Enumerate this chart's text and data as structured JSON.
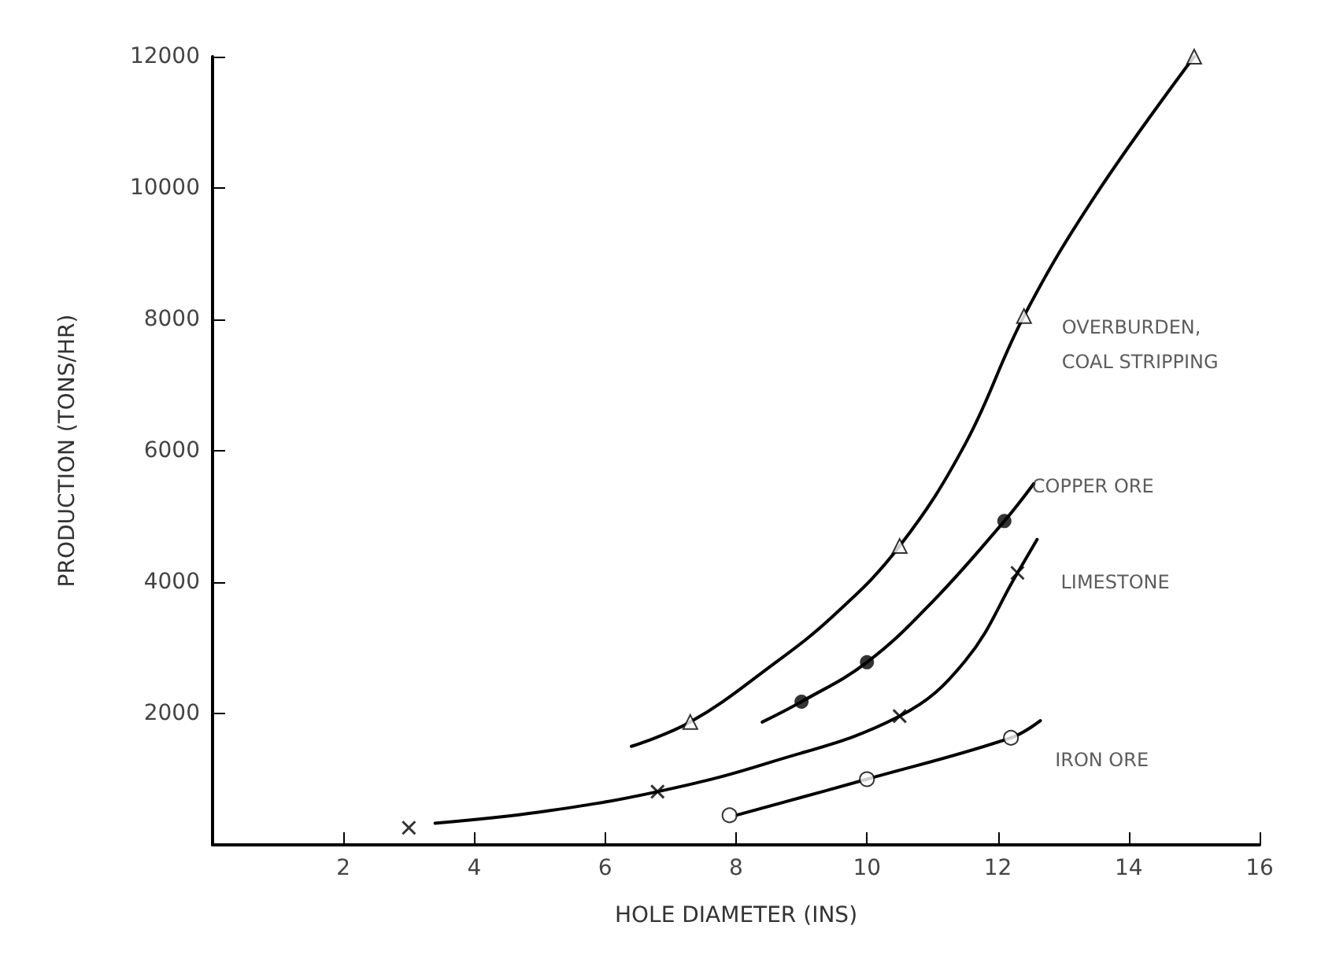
{
  "chart_data": {
    "type": "scatter",
    "xlabel": "HOLE DIAMETER (INS)",
    "ylabel": "PRODUCTION (TONS/HR)",
    "xlim": [
      0,
      16
    ],
    "xticks": [
      2,
      4,
      6,
      8,
      10,
      12,
      14,
      16
    ],
    "ylim": [
      0,
      12000
    ],
    "yticks": [
      2000,
      4000,
      6000,
      8000,
      10000,
      12000
    ],
    "grid": false,
    "legend": false,
    "series": [
      {
        "name": "OVERBURDEN, COAL STRIPPING",
        "marker": "triangle",
        "color": "#000000",
        "x": [
          7.3,
          10.5,
          12.4,
          15.0
        ],
        "values": [
          1870,
          4550,
          8050,
          12000
        ]
      },
      {
        "name": "COPPER ORE",
        "marker": "circle",
        "color": "#000000",
        "x": [
          9.0,
          10.0,
          12.1
        ],
        "values": [
          2180,
          2780,
          4930
        ]
      },
      {
        "name": "LIMESTONE",
        "marker": "cross",
        "color": "#000000",
        "x": [
          3.0,
          6.8,
          10.5,
          12.3
        ],
        "values": [
          260,
          810,
          1960,
          4140
        ]
      },
      {
        "name": "IRON ORE",
        "marker": "circle",
        "color": "#000000",
        "x": [
          7.9,
          10.0,
          12.2
        ],
        "values": [
          450,
          1000,
          1630
        ]
      },
      {
        "type": "line",
        "marker": "none",
        "color": "#000000",
        "x": [
          6.4,
          7.3,
          8.5,
          9.5,
          10.5,
          11.5,
          12.4,
          13.5,
          15.0
        ],
        "values": [
          1500,
          1870,
          2700,
          3500,
          4550,
          6100,
          8050,
          9900,
          12000
        ]
      },
      {
        "type": "line",
        "marker": "none",
        "color": "#000000",
        "x": [
          8.4,
          9.0,
          10.0,
          11.0,
          12.1,
          12.55
        ],
        "values": [
          1870,
          2180,
          2780,
          3700,
          4930,
          5500
        ]
      },
      {
        "type": "line",
        "marker": "none",
        "color": "#000000",
        "x": [
          3.4,
          5.0,
          6.8,
          8.5,
          10.5,
          11.5,
          12.3,
          12.6
        ],
        "values": [
          330,
          500,
          810,
          1250,
          1960,
          2800,
          4140,
          4650
        ]
      },
      {
        "type": "line",
        "marker": "none",
        "color": "#000000",
        "x": [
          8.0,
          10.0,
          12.2,
          12.65
        ],
        "values": [
          450,
          1000,
          1630,
          1890
        ]
      }
    ]
  }
}
